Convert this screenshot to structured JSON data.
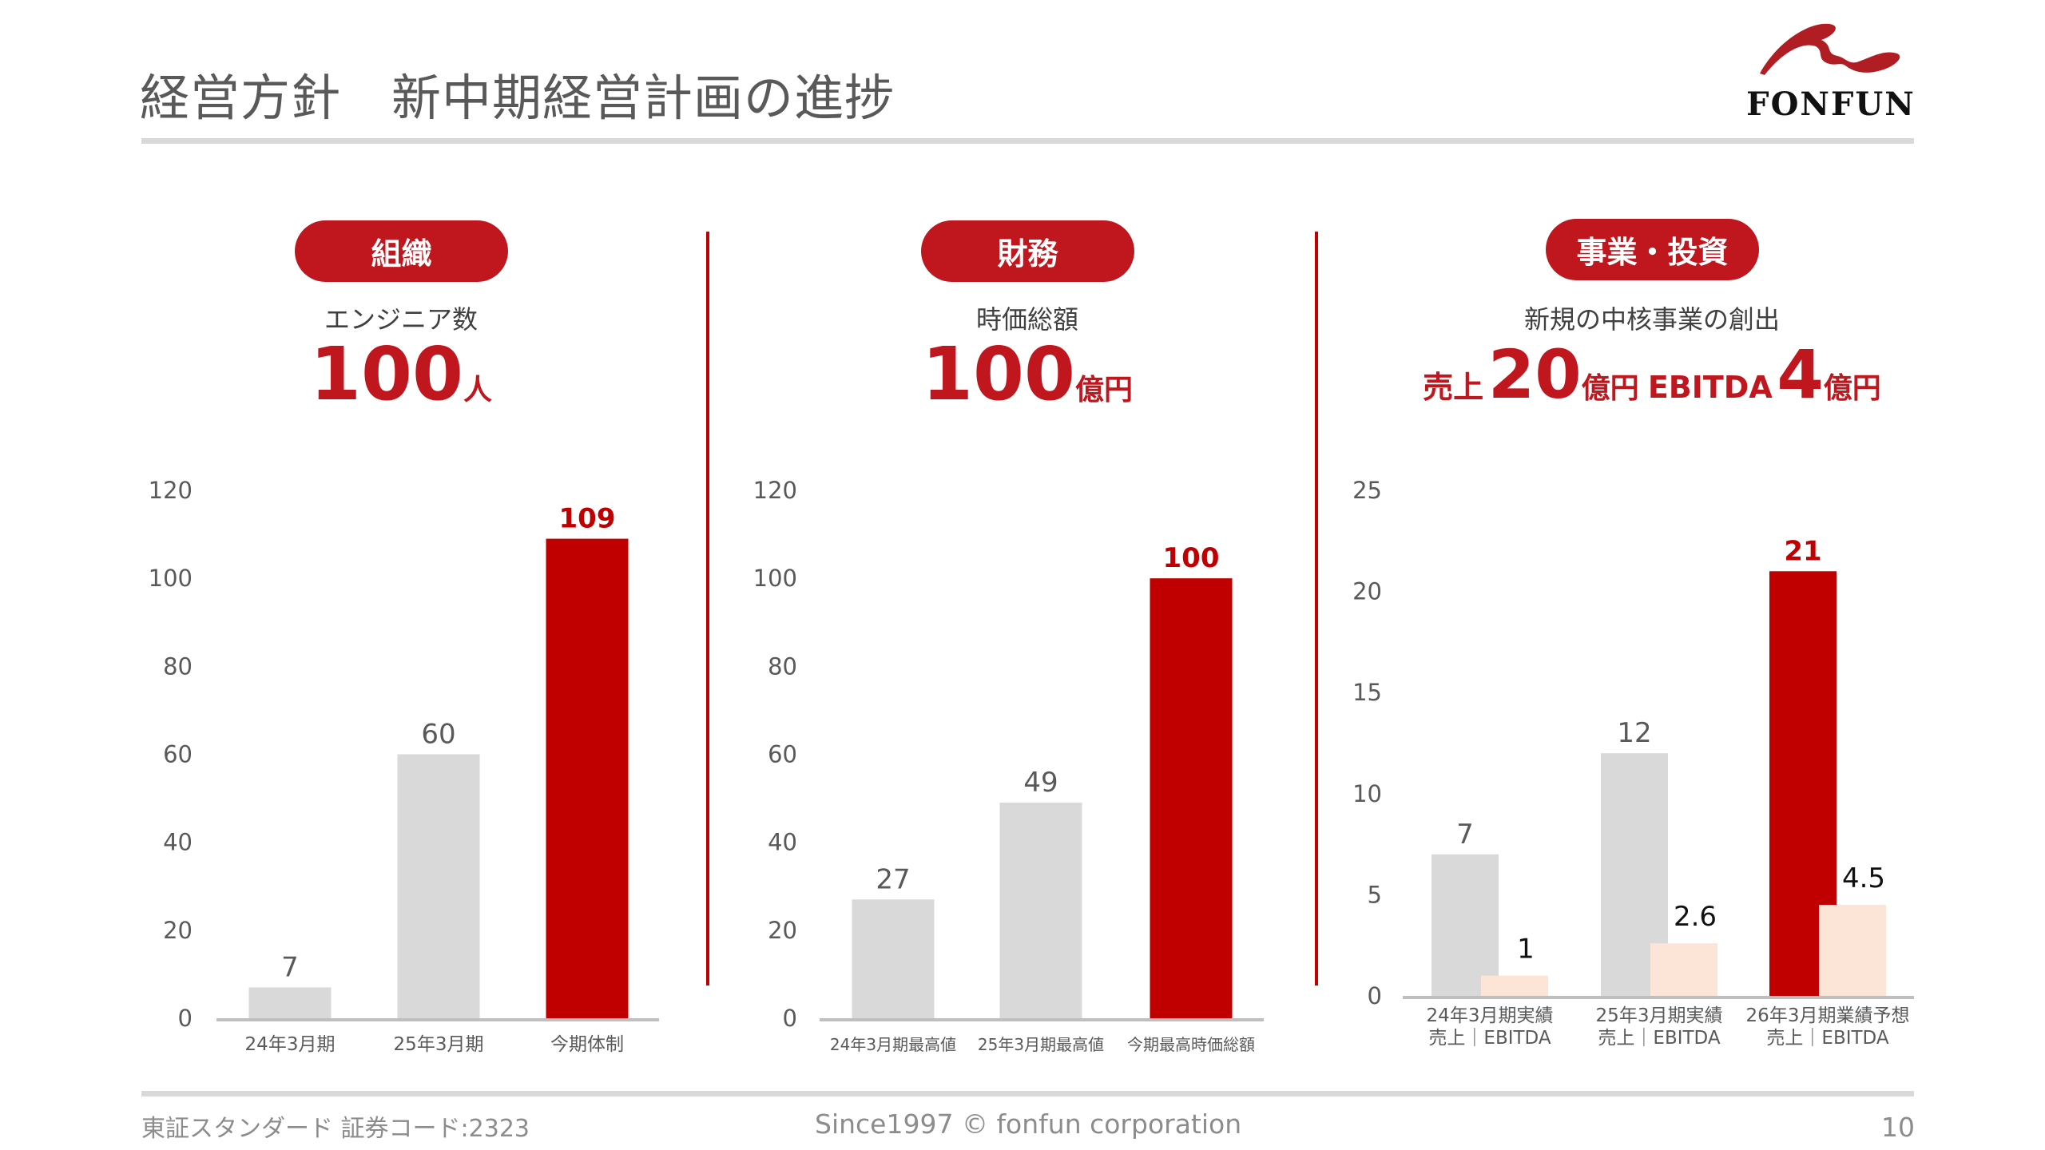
{
  "header": {
    "title": "経営方針　新中期経営計画の進捗",
    "logo_text": "FONFUN"
  },
  "panels": [
    {
      "badge": "組織",
      "subtitle": "エンジニア数",
      "kpi_value": "100",
      "kpi_unit": "人"
    },
    {
      "badge": "財務",
      "subtitle": "時価総額",
      "kpi_value": "100",
      "kpi_unit": "億円"
    },
    {
      "badge": "事業・投資",
      "subtitle": "新規の中核事業の創出",
      "kpi_sales_label": "売上",
      "kpi_sales_value": "20",
      "kpi_sales_unit": "億円",
      "kpi_ebitda_label": "EBITDA",
      "kpi_ebitda_value": "4",
      "kpi_ebitda_unit": "億円"
    }
  ],
  "chart_data": [
    {
      "type": "bar",
      "title": "エンジニア数",
      "categories": [
        "24年3月期",
        "25年3月期",
        "今期体制"
      ],
      "values": [
        7,
        60,
        109
      ],
      "highlight": [
        false,
        false,
        true
      ],
      "ylim": [
        0,
        120
      ],
      "yticks": [
        0,
        20,
        40,
        60,
        80,
        100,
        120
      ],
      "grid": false
    },
    {
      "type": "bar",
      "title": "時価総額",
      "categories": [
        "24年3月期最高値",
        "25年3月期最高値",
        "今期最高時価総額"
      ],
      "values": [
        27,
        49,
        100
      ],
      "highlight": [
        false,
        false,
        true
      ],
      "ylim": [
        0,
        120
      ],
      "yticks": [
        0,
        20,
        40,
        60,
        80,
        100,
        120
      ],
      "grid": false
    },
    {
      "type": "bar",
      "title": "新規の中核事業の創出",
      "categories": [
        [
          "24年3月期実績",
          "売上｜EBITDA"
        ],
        [
          "25年3月期実績",
          "売上｜EBITDA"
        ],
        [
          "26年3月期業績予想",
          "売上｜EBITDA"
        ]
      ],
      "series": [
        {
          "name": "売上",
          "values": [
            7,
            12,
            21
          ],
          "highlight": [
            false,
            false,
            true
          ]
        },
        {
          "name": "EBITDA",
          "values": [
            1,
            2.6,
            4.5
          ]
        }
      ],
      "ylim": [
        0,
        25
      ],
      "yticks": [
        0,
        5,
        10,
        15,
        20,
        25
      ],
      "grid": false
    }
  ],
  "colors": {
    "accent": "#c00000",
    "bar_gray": "#d9d9d9",
    "bar_peach": "#fce4d6",
    "axis": "#bfbfbf"
  },
  "footer": {
    "left": "東証スタンダード 証券コード:2323",
    "center": "Since1997 © fonfun corporation",
    "page": "10"
  }
}
